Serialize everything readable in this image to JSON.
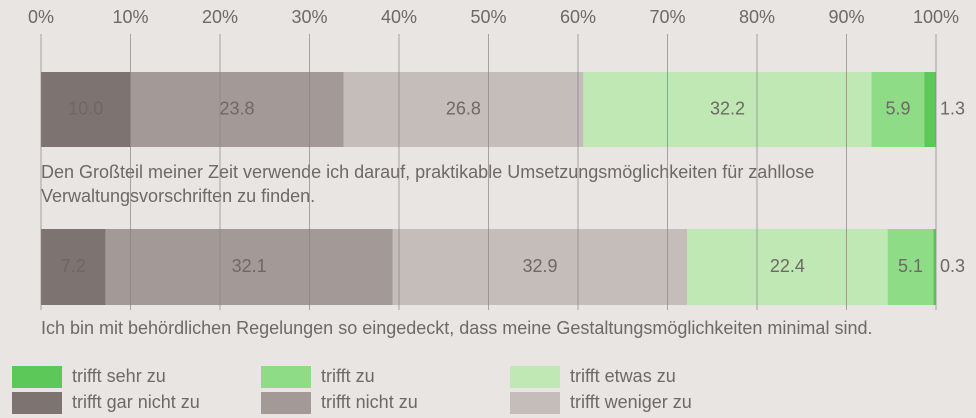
{
  "chart_data": {
    "type": "stacked-barh",
    "categories": [
      "Den Großteil meiner Zeit verwende ich darauf, praktikable Umsetzungsmöglichkeiten für zahllose Verwaltungsvorschriften zu finden.",
      "Ich bin mit behördlichen Regelungen so eingedeckt, dass meine Gestaltungsmöglichkeiten minimal sind."
    ],
    "series": [
      {
        "name": "trifft gar nicht zu",
        "color": "#7d7370",
        "values": [
          10.0,
          7.2
        ],
        "value_labels": [
          "10.0",
          "7.2"
        ]
      },
      {
        "name": "trifft nicht zu",
        "color": "#a39a97",
        "values": [
          23.8,
          32.1
        ]
      },
      {
        "name": "trifft weniger zu",
        "color": "#c4bdba",
        "values": [
          26.8,
          32.9
        ]
      },
      {
        "name": "trifft etwas zu",
        "color": "#bfe8b4",
        "values": [
          32.2,
          22.4
        ]
      },
      {
        "name": "trifft zu",
        "color": "#8fdc87",
        "values": [
          5.9,
          5.1
        ]
      },
      {
        "name": "trifft sehr zu",
        "color": "#5cc85a",
        "values": [
          1.3,
          0.3
        ]
      }
    ],
    "xlim": [
      0,
      100
    ],
    "xticks": [
      {
        "value": 0,
        "label": "0%"
      },
      {
        "value": 10,
        "label": "10%"
      },
      {
        "value": 20,
        "label": "20%"
      },
      {
        "value": 30,
        "label": "30%"
      },
      {
        "value": 40,
        "label": "40%"
      },
      {
        "value": 50,
        "label": "50%"
      },
      {
        "value": 60,
        "label": "60%"
      },
      {
        "value": 70,
        "label": "70%"
      },
      {
        "value": 80,
        "label": "80%"
      },
      {
        "value": 90,
        "label": "90%"
      },
      {
        "value": 100,
        "label": "100%"
      }
    ],
    "grid": true
  }
}
